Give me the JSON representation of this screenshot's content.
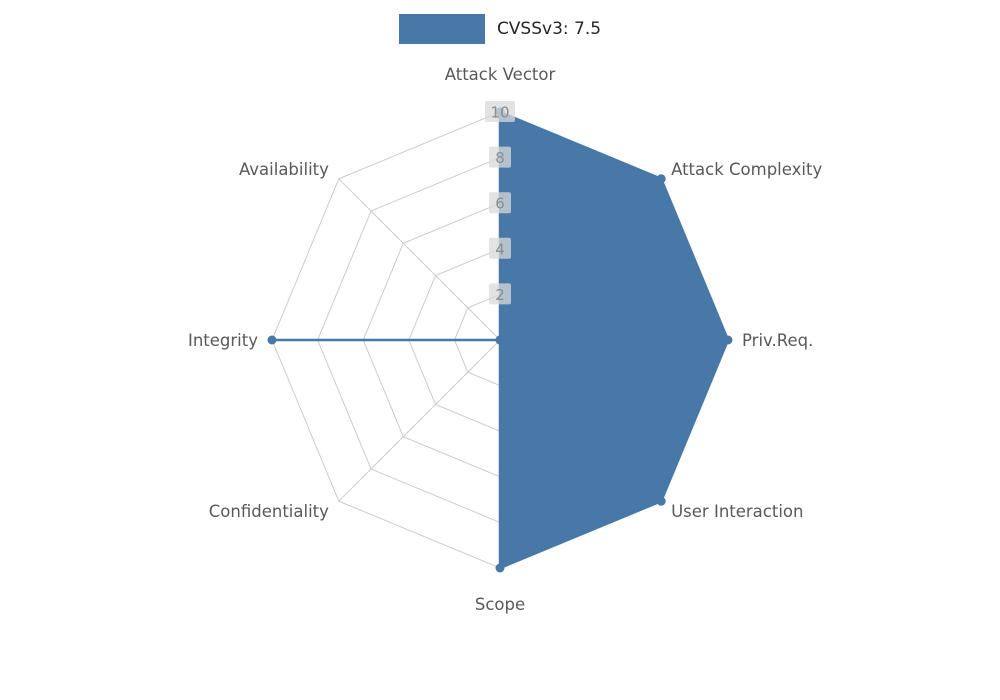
{
  "legend": {
    "label": "CVSSv3: 7.5",
    "color": "#4878a8"
  },
  "chart_data": {
    "type": "radar",
    "title": "CVSSv3: 7.5",
    "categories": [
      "Attack Vector",
      "Attack Complexity",
      "Priv.Req.",
      "User Interaction",
      "Scope",
      "Confidentiality",
      "Integrity",
      "Availability"
    ],
    "series": [
      {
        "name": "CVSSv3: 7.5",
        "values": [
          10,
          10,
          10,
          10,
          10,
          0,
          10,
          0
        ]
      }
    ],
    "ticks": [
      2,
      4,
      6,
      8,
      10
    ],
    "axis_range": [
      0,
      10
    ],
    "grid": true,
    "legend_position": "top-center",
    "fill_color": "#4878a8",
    "grid_color": "#cccccc",
    "label_color": "#595959",
    "tick_color": "#8c8c8c",
    "tick_box_color": "#d9d9d9"
  }
}
